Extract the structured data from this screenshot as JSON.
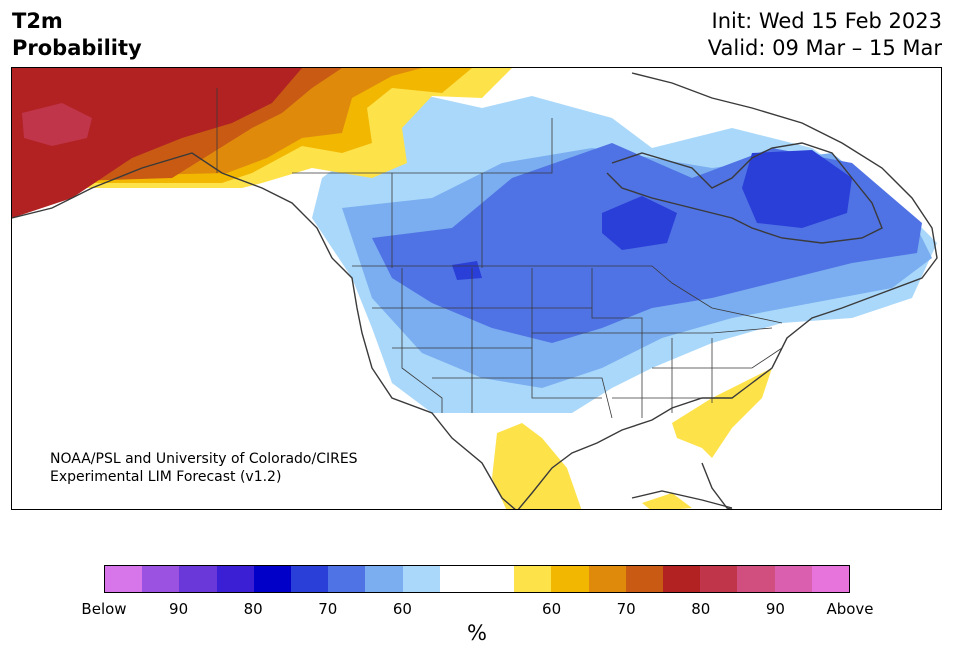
{
  "header": {
    "variable": "T2m",
    "subtitle": "Probability",
    "init": "Init: Wed 15 Feb 2023",
    "valid": "Valid: 09 Mar – 15 Mar"
  },
  "credit": {
    "line1": "NOAA/PSL and University of Colorado/CIRES",
    "line2": "Experimental LIM Forecast (v1.2)"
  },
  "colorbar": {
    "colors": [
      "#d676ea",
      "#9b52e0",
      "#6a38d8",
      "#3b1fd4",
      "#0000c8",
      "#2a3ed8",
      "#4f72e4",
      "#7aaef0",
      "#aad8fa",
      "#ffffff",
      "#ffffff",
      "#fde24a",
      "#f2b700",
      "#e08a0c",
      "#c85a14",
      "#b22222",
      "#c0354a",
      "#d04f7e",
      "#da5fae",
      "#e674dc"
    ],
    "tick_labels": [
      "Below",
      "90",
      "80",
      "70",
      "60",
      "60",
      "70",
      "80",
      "90",
      "Above"
    ],
    "unit": "%"
  },
  "map_colors": {
    "below_50": "#aad8fa",
    "below_60": "#7aaef0",
    "below_70": "#4f72e4",
    "below_80": "#2a3ed8",
    "above_50": "#fde24a",
    "above_60": "#f2b700",
    "above_70": "#e08a0c",
    "above_80": "#c85a14",
    "above_90": "#b22222",
    "above_max": "#c0354a",
    "land_outline": "#3a3a3a"
  }
}
